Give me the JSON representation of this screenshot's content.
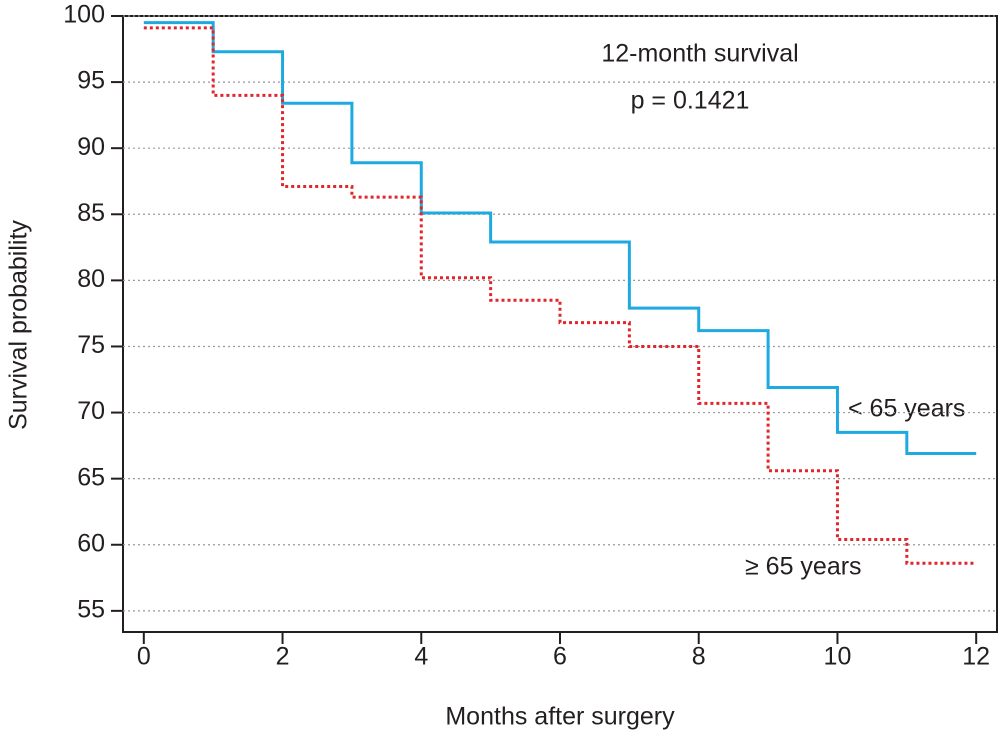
{
  "chart_data": {
    "type": "line",
    "step": "post",
    "xlabel": "Months after surgery",
    "ylabel": "Survival probability",
    "annotations": [
      "12-month survival",
      "p = 0.1421"
    ],
    "xlim": [
      -0.3,
      12.3
    ],
    "ylim": [
      53.4,
      100
    ],
    "xticks": [
      0,
      2,
      4,
      6,
      8,
      10,
      12
    ],
    "yticks": [
      55,
      60,
      65,
      70,
      75,
      80,
      85,
      90,
      95,
      100
    ],
    "grid": true,
    "series": [
      {
        "name": "< 65 years",
        "color": "#1ea9e1",
        "dash": false,
        "x": [
          0,
          1,
          2,
          3,
          4,
          5,
          7,
          8,
          9,
          10,
          11,
          12
        ],
        "values": [
          99.5,
          97.3,
          93.4,
          88.9,
          85.1,
          82.9,
          77.9,
          76.2,
          71.9,
          68.5,
          66.9,
          66.9
        ]
      },
      {
        "name": "≥ 65 years",
        "color": "#e0262b",
        "dash": true,
        "x": [
          0,
          1,
          2,
          3,
          4,
          5,
          6,
          7,
          8,
          9,
          10,
          11,
          12
        ],
        "values": [
          99.1,
          94.0,
          87.1,
          86.3,
          80.2,
          78.5,
          76.8,
          75.0,
          70.7,
          65.6,
          60.4,
          58.6,
          58.6
        ]
      }
    ]
  }
}
